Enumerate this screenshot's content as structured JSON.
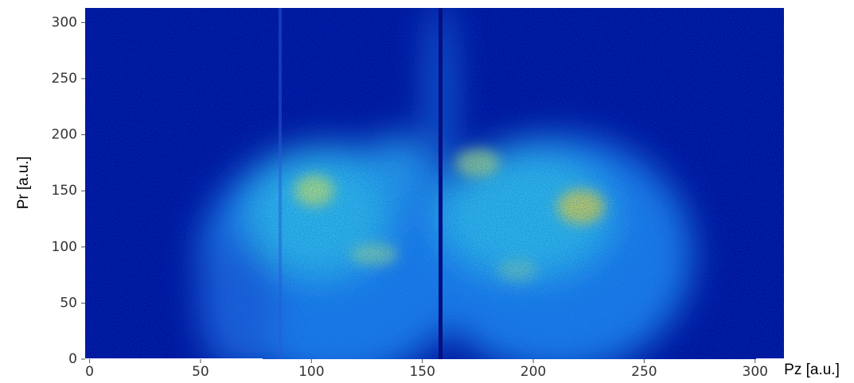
{
  "chart_data": {
    "type": "heatmap",
    "xlabel": "Pz [a.u.]",
    "ylabel": "Pr [a.u.]",
    "xlim": [
      -2,
      313
    ],
    "ylim": [
      0,
      313
    ],
    "xticks": [
      0,
      50,
      100,
      150,
      200,
      250,
      300
    ],
    "yticks": [
      0,
      50,
      100,
      150,
      200,
      250,
      300
    ],
    "colormap": "jet"
  }
}
